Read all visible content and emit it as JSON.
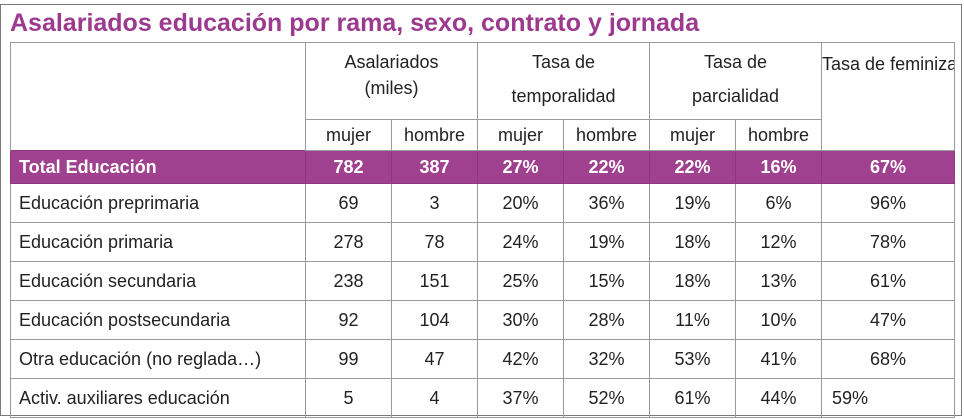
{
  "title": "Asalariados educación por rama, sexo, contrato y jornada",
  "headers": {
    "asalariados": [
      "Asalariados",
      "(miles)"
    ],
    "temporalidad": [
      "Tasa de",
      "temporalidad"
    ],
    "parcialidad": [
      "Tasa de",
      "parcialidad"
    ],
    "feminizacion": [
      "Tasa de",
      "feminización"
    ],
    "sub": [
      "mujer",
      "hombre",
      "mujer",
      "hombre",
      "mujer",
      "hombre"
    ]
  },
  "total": {
    "label": "Total Educación",
    "values": [
      "782",
      "387",
      "27%",
      "22%",
      "22%",
      "16%",
      "67%"
    ]
  },
  "rows": [
    {
      "label": "Educación preprimaria",
      "values": [
        "69",
        "3",
        "20%",
        "36%",
        "19%",
        "6%",
        "96%"
      ]
    },
    {
      "label": "Educación primaria",
      "values": [
        "278",
        "78",
        "24%",
        "19%",
        "18%",
        "12%",
        "78%"
      ]
    },
    {
      "label": "Educación secundaria",
      "values": [
        "238",
        "151",
        "25%",
        "15%",
        "18%",
        "13%",
        "61%"
      ]
    },
    {
      "label": "Educación postsecundaria",
      "values": [
        "92",
        "104",
        "30%",
        "28%",
        "11%",
        "10%",
        "47%"
      ]
    },
    {
      "label": "Otra educación (no reglada…)",
      "values": [
        "99",
        "47",
        "42%",
        "32%",
        "53%",
        "41%",
        "68%"
      ]
    },
    {
      "label": "Activ. auxiliares educación",
      "values": [
        "5",
        "4",
        "37%",
        "52%",
        "61%",
        "44%",
        "59%"
      ]
    }
  ]
}
